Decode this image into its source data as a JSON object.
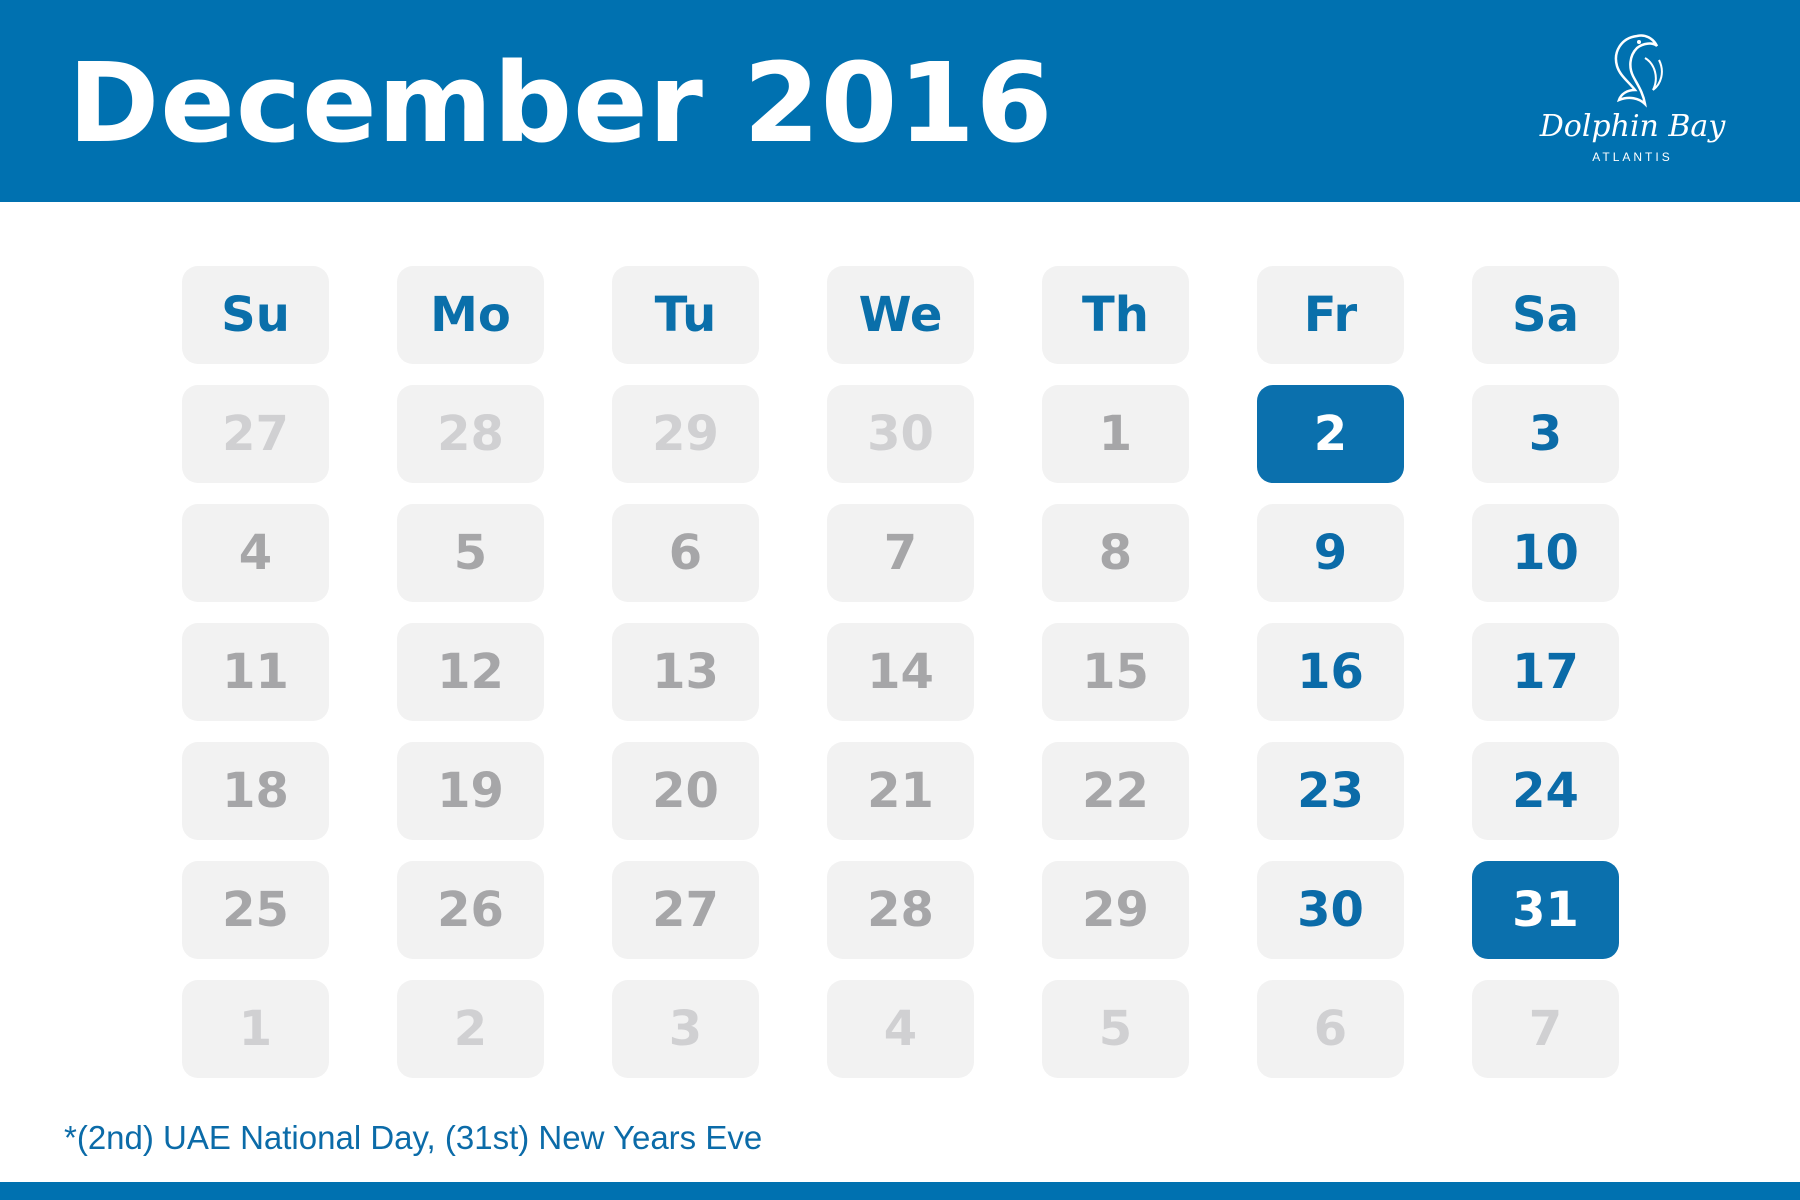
{
  "header": {
    "title": "December 2016",
    "background_color": "#0071b0",
    "logo": {
      "name": "Dolphin Bay",
      "sub": "ATLANTIS",
      "icon": "dolphin-icon"
    }
  },
  "calendar": {
    "day_names": [
      "Su",
      "Mo",
      "Tu",
      "We",
      "Th",
      "Fr",
      "Sa"
    ],
    "weeks": [
      [
        {
          "day": "27",
          "state": "outside"
        },
        {
          "day": "28",
          "state": "outside"
        },
        {
          "day": "29",
          "state": "outside"
        },
        {
          "day": "30",
          "state": "outside"
        },
        {
          "day": "1",
          "state": "normal"
        },
        {
          "day": "2",
          "state": "highlight"
        },
        {
          "day": "3",
          "state": "weekend"
        }
      ],
      [
        {
          "day": "4",
          "state": "normal"
        },
        {
          "day": "5",
          "state": "normal"
        },
        {
          "day": "6",
          "state": "normal"
        },
        {
          "day": "7",
          "state": "normal"
        },
        {
          "day": "8",
          "state": "normal"
        },
        {
          "day": "9",
          "state": "weekend"
        },
        {
          "day": "10",
          "state": "weekend"
        }
      ],
      [
        {
          "day": "11",
          "state": "normal"
        },
        {
          "day": "12",
          "state": "normal"
        },
        {
          "day": "13",
          "state": "normal"
        },
        {
          "day": "14",
          "state": "normal"
        },
        {
          "day": "15",
          "state": "normal"
        },
        {
          "day": "16",
          "state": "weekend"
        },
        {
          "day": "17",
          "state": "weekend"
        }
      ],
      [
        {
          "day": "18",
          "state": "normal"
        },
        {
          "day": "19",
          "state": "normal"
        },
        {
          "day": "20",
          "state": "normal"
        },
        {
          "day": "21",
          "state": "normal"
        },
        {
          "day": "22",
          "state": "normal"
        },
        {
          "day": "23",
          "state": "weekend"
        },
        {
          "day": "24",
          "state": "weekend"
        }
      ],
      [
        {
          "day": "25",
          "state": "normal"
        },
        {
          "day": "26",
          "state": "normal"
        },
        {
          "day": "27",
          "state": "normal"
        },
        {
          "day": "28",
          "state": "normal"
        },
        {
          "day": "29",
          "state": "normal"
        },
        {
          "day": "30",
          "state": "weekend"
        },
        {
          "day": "31",
          "state": "highlight"
        }
      ],
      [
        {
          "day": "1",
          "state": "outside"
        },
        {
          "day": "2",
          "state": "outside"
        },
        {
          "day": "3",
          "state": "outside"
        },
        {
          "day": "4",
          "state": "outside"
        },
        {
          "day": "5",
          "state": "outside"
        },
        {
          "day": "6",
          "state": "outside"
        },
        {
          "day": "7",
          "state": "outside"
        }
      ]
    ],
    "colors": {
      "accent": "#0b70ad",
      "normal_text": "#a6a6a8",
      "outside_text": "#d0d0d2",
      "cell_bg": "#f2f2f2"
    }
  },
  "note": "*(2nd) UAE National Day, (31st) New Years Eve"
}
